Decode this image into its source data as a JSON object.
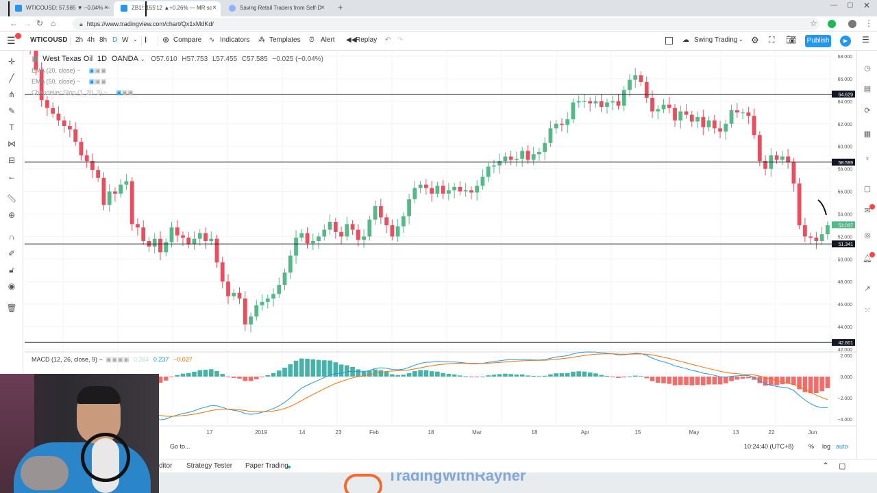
{
  "browser": {
    "tabs": [
      {
        "title": "WTICOUSD: 57.585 ▼ −0.04% —",
        "close": "×"
      },
      {
        "title": "ZB1!: 155'12 ▲+0.26% — MR sc",
        "close": "×"
      },
      {
        "title": "Saving Retail Traders from Self-D",
        "close": "×"
      }
    ],
    "new_tab": "+",
    "url": "https://www.tradingview.com/chart/Qx1xMdKd/"
  },
  "toolbar": {
    "symbol": "WTICOUSD",
    "intervals": [
      "2h",
      "4h",
      "8h",
      "D",
      "W"
    ],
    "compare": "Compare",
    "indicators": "Indicators",
    "templates": "Templates",
    "alert": "Alert",
    "replay": "Replay",
    "layout_name": "Swing Trading",
    "publish": "Publish"
  },
  "legend": {
    "title": "West Texas Oil",
    "interval": "1D",
    "broker": "OANDA",
    "open": "O57.610",
    "high": "H57.753",
    "low": "L57.455",
    "close": "C57.585",
    "change": "−0.025 (−0.04%)",
    "studies": [
      "EMA (20, close) ~",
      "EMA (50, close) ~",
      "Chandelier Stop (1, 20, 3) ~"
    ],
    "macd": "MACD (12, 26, close, 9) ~",
    "macd_values": [
      "0.264",
      "0.237",
      "−0.027"
    ]
  },
  "chart_data": {
    "type": "candlestick",
    "price_axis": {
      "min": 42.0,
      "max": 68.0,
      "ticks": [
        "68.000",
        "66.000",
        "64.000",
        "62.000",
        "60.000",
        "58.000",
        "56.000",
        "54.000",
        "52.000",
        "50.000",
        "48.000",
        "46.000",
        "44.000",
        "42.000"
      ]
    },
    "macd_axis": {
      "ticks": [
        "2.000",
        "0.000",
        "−2.000",
        "−4.000"
      ]
    },
    "horizontal_lines": [
      {
        "label": "64.629",
        "value": 64.629
      },
      {
        "label": "58.599",
        "value": 58.599
      },
      {
        "label": "51.341",
        "value": 51.341
      },
      {
        "label": "42.601",
        "value": 42.601
      }
    ],
    "price_tags": [
      {
        "label": "53.037",
        "value": 53.037
      }
    ],
    "time_axis": [
      "17",
      "2019",
      "14",
      "23",
      "Feb",
      "18",
      "Mar",
      "18",
      "Apr",
      "15",
      "May",
      "13",
      "22",
      "Jun"
    ],
    "closes": [
      68.5,
      66.8,
      64.1,
      63.4,
      62.9,
      62.3,
      61.8,
      61.5,
      60.4,
      59.2,
      58.7,
      57.9,
      57.2,
      54.8,
      56.0,
      55.8,
      56.6,
      56.9,
      53.1,
      52.8,
      51.6,
      51.1,
      51.8,
      50.6,
      51.5,
      52.8,
      52.1,
      51.9,
      51.3,
      51.8,
      52.3,
      51.6,
      51.8,
      49.7,
      48.0,
      46.7,
      47.0,
      46.5,
      44.2,
      44.9,
      45.9,
      46.2,
      46.5,
      46.9,
      47.7,
      48.8,
      50.3,
      51.9,
      52.3,
      51.4,
      51.6,
      52.0,
      52.6,
      53.3,
      52.4,
      52.0,
      53.1,
      52.6,
      51.7,
      52.0,
      53.5,
      54.7,
      53.7,
      53.0,
      52.0,
      52.9,
      53.8,
      55.3,
      56.3,
      56.6,
      56.3,
      55.8,
      56.5,
      55.8,
      56.1,
      56.4,
      56.0,
      56.1,
      55.9,
      56.5,
      57.3,
      58.2,
      58.3,
      58.7,
      59.1,
      58.8,
      58.9,
      59.6,
      58.8,
      59.3,
      59.5,
      60.3,
      61.6,
      62.0,
      61.9,
      62.4,
      63.9,
      64.0,
      64.0,
      63.8,
      64.0,
      63.5,
      63.9,
      64.0,
      63.6,
      65.0,
      65.9,
      66.3,
      65.7,
      64.3,
      63.1,
      63.3,
      63.7,
      63.4,
      62.3,
      63.1,
      62.8,
      62.2,
      62.6,
      61.7,
      62.3,
      61.6,
      61.3,
      62.0,
      63.2,
      63.0,
      63.0,
      62.7,
      61.0,
      58.7,
      58.0,
      59.2,
      58.8,
      59.1,
      58.6,
      56.7,
      53.0,
      52.0,
      51.9,
      51.6,
      52.2,
      53.0
    ]
  },
  "bottom": {
    "goto": "Go to...",
    "clock": "10:24:40 (UTC+8)",
    "percent": "%",
    "log": "log",
    "auto": "auto",
    "tabs": [
      "Pine Editor",
      "Strategy Tester",
      "Paper Trading"
    ],
    "tab_prefix_visible": "ditor",
    "brand": "TradingWithRayner"
  },
  "colors": {
    "up": "#53b987",
    "down": "#eb4d5c",
    "accent": "#2196f3",
    "macd_line": "#2196f3",
    "signal_line": "#ff6d00"
  }
}
